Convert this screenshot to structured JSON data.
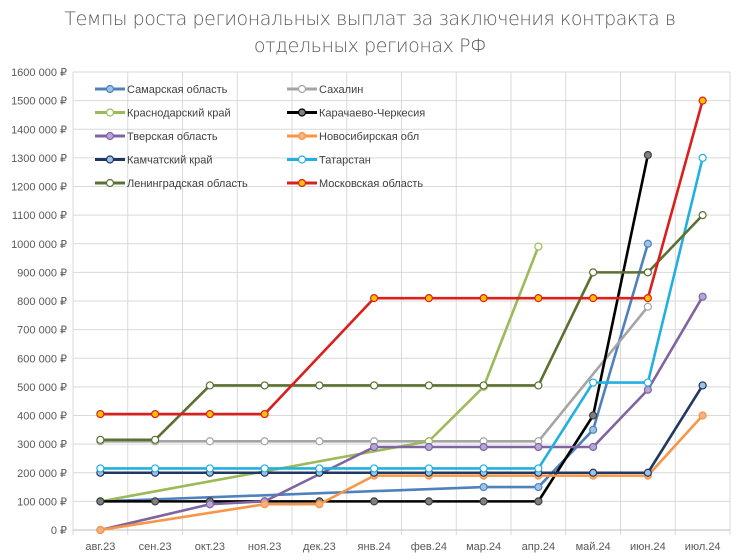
{
  "chart_data": {
    "type": "line",
    "title": "Темпы роста региональных выплат за заключения контракта в отдельных регионах РФ",
    "title_lines": [
      "Темпы роста региональных выплат за заключения контракта в",
      "отдельных регионах РФ"
    ],
    "xlabel": "",
    "ylabel": "",
    "ylim": [
      0,
      1600000
    ],
    "grid": true,
    "legend_position": "top-left inside",
    "categories": [
      "авг.23",
      "сен.23",
      "окт.23",
      "ноя.23",
      "дек.23",
      "янв.24",
      "фев.24",
      "мар.24",
      "апр.24",
      "май.24",
      "июн.24",
      "июл.24"
    ],
    "y_ticks": [
      "0 ₽",
      "100 000 ₽",
      "200 000 ₽",
      "300 000 ₽",
      "400 000 ₽",
      "500 000 ₽",
      "600 000 ₽",
      "700 000 ₽",
      "800 000 ₽",
      "900 000 ₽",
      "1000 000 ₽",
      "1100 000 ₽",
      "1200 000 ₽",
      "1300 000 ₽",
      "1400 000 ₽",
      "1500 000 ₽",
      "1600 000 ₽"
    ],
    "series": [
      {
        "name": "Самарская область",
        "color": "#4f81bd",
        "marker_fill": "#9dc3e6",
        "values": [
          100000,
          null,
          null,
          null,
          null,
          null,
          null,
          150000,
          150000,
          350000,
          1000000,
          null
        ]
      },
      {
        "name": "Сахалин",
        "color": "#a5a5a5",
        "marker_fill": "#ffffff",
        "values": [
          310000,
          310000,
          310000,
          310000,
          310000,
          310000,
          310000,
          310000,
          310000,
          null,
          780000,
          null
        ]
      },
      {
        "name": "Краснодарский край",
        "color": "#9bbb59",
        "marker_fill": "#ffffff",
        "values": [
          100000,
          null,
          null,
          null,
          null,
          null,
          310000,
          500000,
          990000,
          null,
          null,
          null
        ]
      },
      {
        "name": "Карачаево-Черкесия",
        "color": "#000000",
        "marker_fill": "#808080",
        "values": [
          100000,
          100000,
          100000,
          100000,
          100000,
          100000,
          100000,
          100000,
          100000,
          400000,
          1310000,
          null
        ]
      },
      {
        "name": "Тверская область",
        "color": "#8064a2",
        "marker_fill": "#b4a7d6",
        "values": [
          0,
          null,
          90000,
          100000,
          null,
          290000,
          290000,
          290000,
          290000,
          290000,
          490000,
          815000
        ]
      },
      {
        "name": "Новосибирская обл",
        "color": "#f79646",
        "marker_fill": "#f4b183",
        "values": [
          0,
          null,
          null,
          90000,
          90000,
          190000,
          190000,
          190000,
          190000,
          190000,
          190000,
          400000
        ]
      },
      {
        "name": "Камчатский край",
        "color": "#1f3864",
        "marker_fill": "#9dc3e6",
        "values": [
          200000,
          200000,
          200000,
          200000,
          200000,
          200000,
          200000,
          200000,
          200000,
          200000,
          200000,
          505000
        ]
      },
      {
        "name": "Татарстан",
        "color": "#23b0e0",
        "marker_fill": "#ffffff",
        "values": [
          215000,
          215000,
          215000,
          215000,
          215000,
          215000,
          215000,
          215000,
          215000,
          515000,
          515000,
          1300000
        ]
      },
      {
        "name": "Ленинградская область",
        "color": "#5b7031",
        "marker_fill": "#ffffff",
        "values": [
          315000,
          315000,
          505000,
          505000,
          505000,
          505000,
          505000,
          505000,
          505000,
          900000,
          900000,
          1100000
        ]
      },
      {
        "name": "Московская область",
        "color": "#d9201c",
        "marker_fill": "#ffc000",
        "values": [
          405000,
          405000,
          405000,
          405000,
          null,
          810000,
          810000,
          810000,
          810000,
          810000,
          810000,
          1500000
        ]
      }
    ]
  }
}
